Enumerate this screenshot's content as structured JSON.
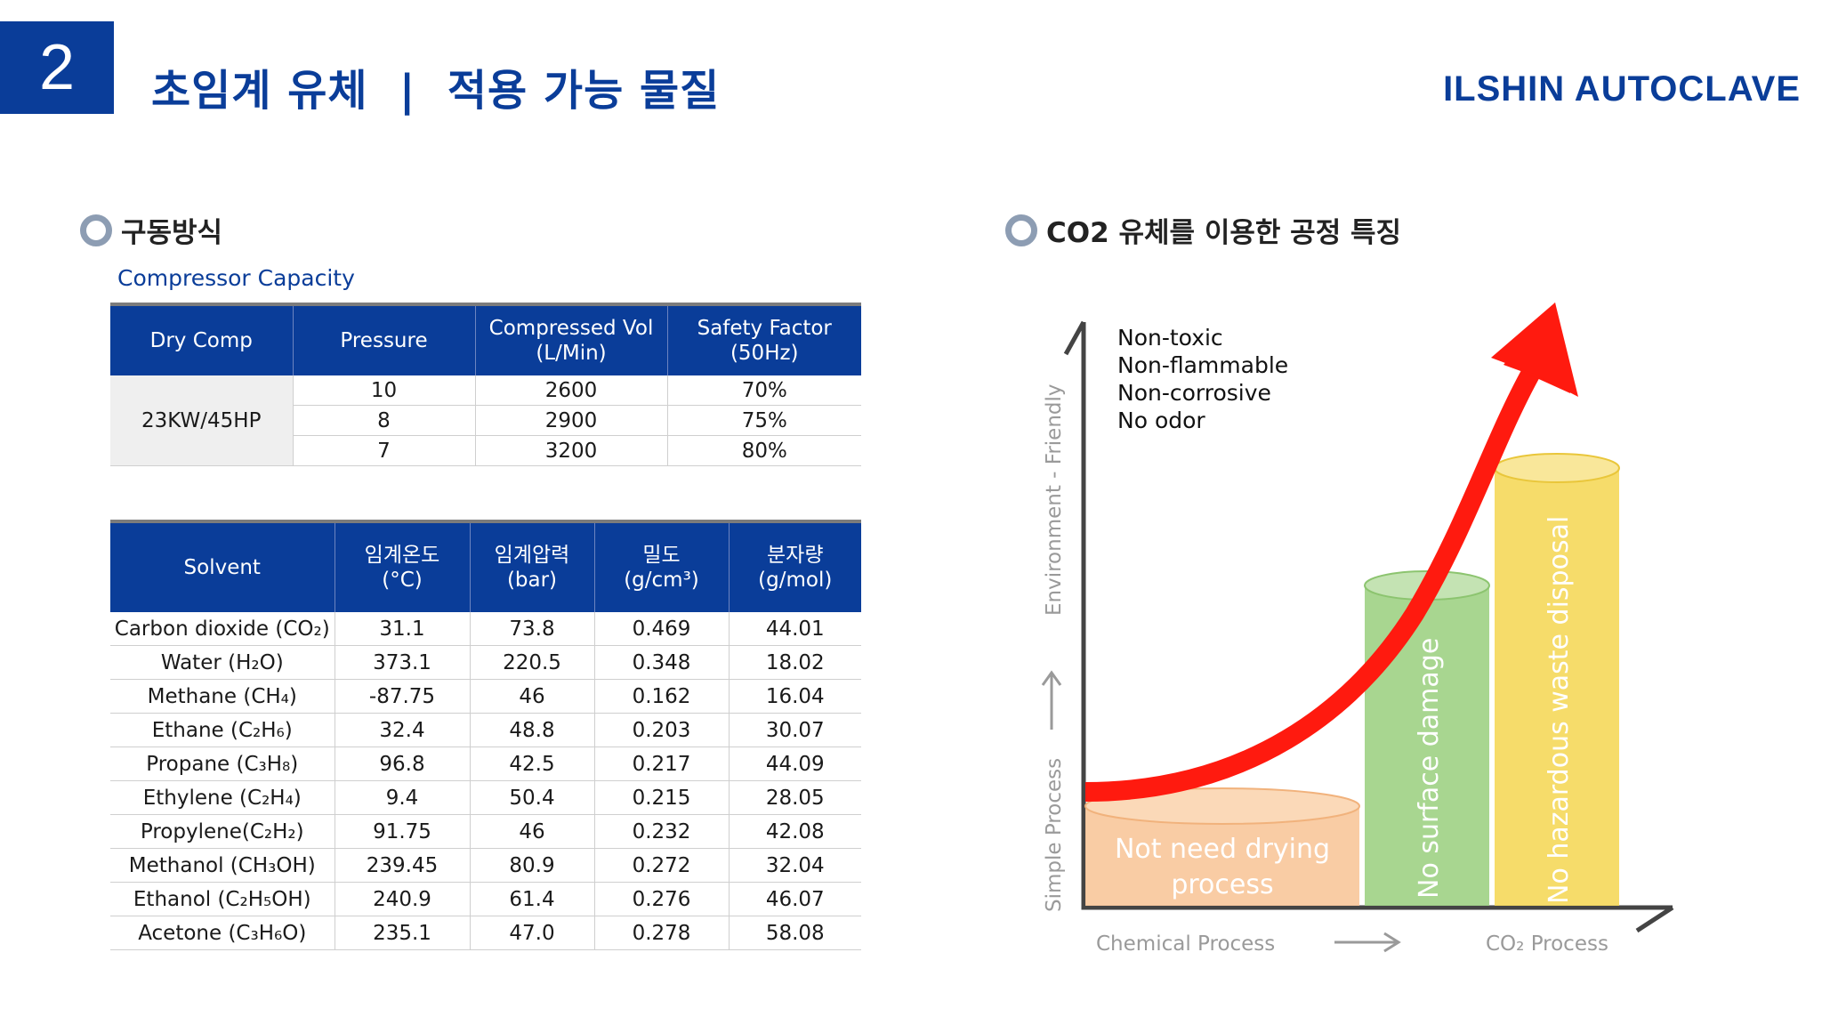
{
  "header": {
    "slide_number": "2",
    "title": "초임계 유체  |  적용 가능 물질",
    "brand": "ILSHIN AUTOCLAVE"
  },
  "left_section": {
    "heading": "구동방식",
    "caption": "Compressor Capacity",
    "compressor_table": {
      "headers": [
        "Dry Comp",
        "Pressure",
        "Compressed Vol\n(L/Min)",
        "Safety Factor\n(50Hz)"
      ],
      "model": "23KW/45HP",
      "rows": [
        [
          "10",
          "2600",
          "70%"
        ],
        [
          "8",
          "2900",
          "75%"
        ],
        [
          "7",
          "3200",
          "80%"
        ]
      ]
    },
    "solvent_table": {
      "headers": [
        "Solvent",
        "임계온도\n(°C)",
        "임계압력\n(bar)",
        "밀도\n(g/cm³)",
        "분자량\n(g/mol)"
      ],
      "rows": [
        [
          "Carbon dioxide (CO₂)",
          "31.1",
          "73.8",
          "0.469",
          "44.01"
        ],
        [
          "Water (H₂O)",
          "373.1",
          "220.5",
          "0.348",
          "18.02"
        ],
        [
          "Methane (CH₄)",
          "-87.75",
          "46",
          "0.162",
          "16.04"
        ],
        [
          "Ethane (C₂H₆)",
          "32.4",
          "48.8",
          "0.203",
          "30.07"
        ],
        [
          "Propane (C₃H₈)",
          "96.8",
          "42.5",
          "0.217",
          "44.09"
        ],
        [
          "Ethylene (C₂H₄)",
          "9.4",
          "50.4",
          "0.215",
          "28.05"
        ],
        [
          "Propylene(C₂H₂)",
          "91.75",
          "46",
          "0.232",
          "42.08"
        ],
        [
          "Methanol (CH₃OH)",
          "239.45",
          "80.9",
          "0.272",
          "32.04"
        ],
        [
          "Ethanol (C₂H₅OH)",
          "240.9",
          "61.4",
          "0.276",
          "46.07"
        ],
        [
          "Acetone (C₃H₆O)",
          "235.1",
          "47.0",
          "0.278",
          "58.08"
        ]
      ]
    }
  },
  "right_section": {
    "heading": "CO2 유체를 이용한 공정 특징",
    "properties": [
      "Non-toxic",
      "Non-flammable",
      "Non-corrosive",
      "No odor"
    ],
    "y_axis_bottom": "Simple Process",
    "y_axis_top": "Environment - Friendly",
    "x_axis_left": "Chemical Process",
    "x_axis_right": "CO₂ Process",
    "bars": [
      {
        "label_line1": "Not need drying",
        "label_line2": "process",
        "color": "#f8c79a"
      },
      {
        "label": "No surface damage",
        "color": "#9fd184"
      },
      {
        "label": "No hazardous waste disposal",
        "color": "#f5d85a"
      }
    ],
    "arrow_color": "#ff1a0f"
  }
}
